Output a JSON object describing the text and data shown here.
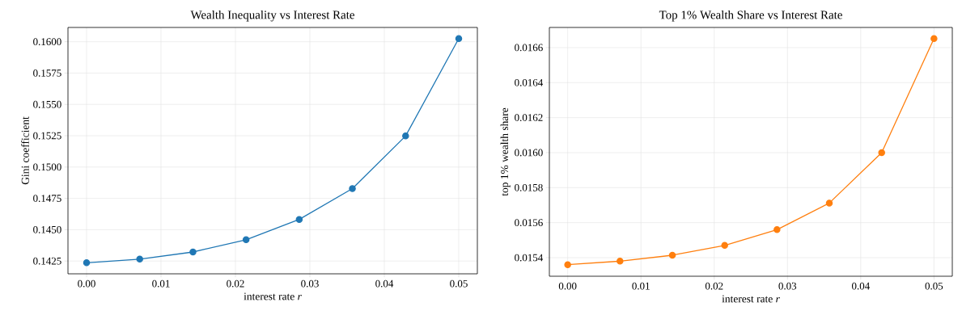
{
  "chart_data": [
    {
      "type": "line",
      "title": "Wealth Inequality vs Interest Rate",
      "xlabel": "interest rate *r*",
      "ylabel": "Gini coefficient",
      "x": [
        0.0,
        0.00714,
        0.01429,
        0.02143,
        0.02857,
        0.03571,
        0.04286,
        0.05
      ],
      "series": [
        {
          "color": "#1f77b4",
          "values": [
            0.14236,
            0.14265,
            0.14322,
            0.1442,
            0.14582,
            0.14828,
            0.15248,
            0.16025
          ]
        }
      ],
      "xlim": [
        -0.0025,
        0.0525
      ],
      "ylim": [
        0.14148,
        0.16114
      ],
      "xticks": [
        {
          "value": 0,
          "label": "0.00"
        },
        0.01,
        0.02,
        0.03,
        0.04,
        0.05
      ],
      "yticks": [
        0.1425,
        {
          "value": 0.145,
          "label": "0.1450"
        },
        {
          "value": 0.1475,
          "label": "0.1475"
        },
        {
          "value": 0.15,
          "label": "0.1500"
        },
        0.1525,
        {
          "value": 0.155,
          "label": "0.1550"
        },
        0.1575,
        {
          "value": 0.16,
          "label": "0.1600"
        }
      ],
      "grid": true,
      "marker": "circle",
      "line_style": "solid"
    },
    {
      "type": "line",
      "title": "Top 1% Wealth Share vs Interest Rate",
      "xlabel": "interest rate *r*",
      "ylabel": "top 1% wealth share",
      "x": [
        0.0,
        0.00714,
        0.01429,
        0.02143,
        0.02857,
        0.03571,
        0.04286,
        0.05
      ],
      "series": [
        {
          "color": "#ff7f0e",
          "values": [
            0.01536,
            0.01538,
            0.015414,
            0.01547,
            0.01556,
            0.015712,
            0.016,
            0.016652
          ]
        }
      ],
      "xlim": [
        -0.0025,
        0.0525
      ],
      "ylim": [
        0.015294,
        0.016715
      ],
      "xticks": [
        {
          "value": 0,
          "label": "0.00"
        },
        0.01,
        0.02,
        0.03,
        0.04,
        0.05
      ],
      "yticks": [
        0.0154,
        0.0156,
        0.0158,
        {
          "value": 0.016,
          "label": "0.0160"
        },
        0.0162,
        0.0164,
        0.0166
      ],
      "grid": true,
      "marker": "circle",
      "line_style": "solid"
    }
  ]
}
